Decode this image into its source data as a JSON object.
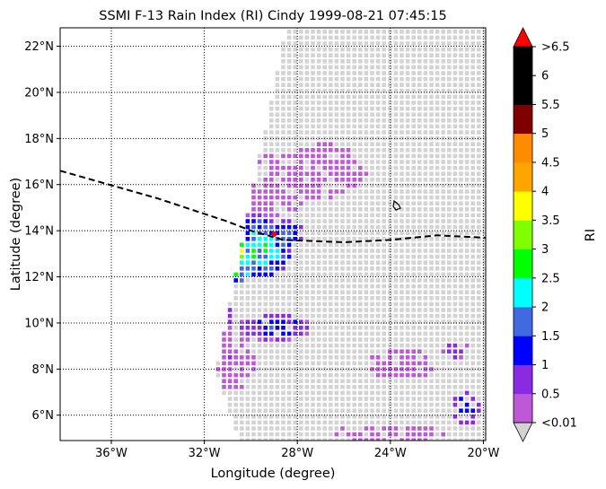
{
  "chart_data": {
    "type": "heatmap",
    "title": "SSMI F-13 Rain Index (RI) Cindy 1999-08-21 07:45:15",
    "xlabel": "Longitude (degree)",
    "ylabel": "Latitude (degree)",
    "xlim": [
      -38.2,
      -19.9
    ],
    "ylim": [
      4.9,
      22.8
    ],
    "x_ticks": [
      "36°W",
      "32°W",
      "28°W",
      "24°W",
      "20°W"
    ],
    "x_tick_values": [
      -36,
      -32,
      -28,
      -24,
      -20
    ],
    "y_ticks": [
      "6°N",
      "8°N",
      "10°N",
      "12°N",
      "14°N",
      "16°N",
      "18°N",
      "20°N",
      "22°N"
    ],
    "y_tick_values": [
      6,
      8,
      10,
      12,
      14,
      16,
      18,
      20,
      22
    ],
    "grid": "dotted",
    "colorbar": {
      "label": "RI",
      "tick_labels": [
        "<0.01",
        "0.5",
        "1",
        "1.5",
        "2",
        "2.5",
        "3",
        "3.5",
        "4",
        "4.5",
        "5",
        "5.5",
        "6",
        ">6.5"
      ],
      "colors": [
        "#be58d6",
        "#8a2be2",
        "#0000ff",
        "#4169e1",
        "#00ffff",
        "#00ff00",
        "#7fff00",
        "#ffff00",
        "#ffa500",
        "#ff8c00",
        "#800000",
        "#000000",
        "#000000"
      ],
      "under_color": "#d3d3d3",
      "over_color": "#ff0000"
    },
    "swath": {
      "color": "#d3d3d3",
      "corners_lonlat": [
        [
          -31.5,
          8.0
        ],
        [
          -28.5,
          22.8
        ],
        [
          -19.9,
          22.8
        ],
        [
          -19.9,
          4.9
        ],
        [
          -30.5,
          4.9
        ]
      ]
    },
    "storm_track": {
      "style": "dashed",
      "lon": [
        -38.2,
        -34,
        -31,
        -30,
        -28.6,
        -26,
        -24,
        -22,
        -19.9
      ],
      "lat": [
        16.6,
        15.4,
        14.4,
        14.0,
        13.6,
        13.5,
        13.6,
        13.8,
        13.7
      ]
    },
    "storm_center": {
      "lon": -29.0,
      "lat": 13.85,
      "color": "#ff0000"
    },
    "rain_clusters": [
      {
        "lon": -30.6,
        "lat": 12.8,
        "rx": 0.9,
        "ry": 1.1,
        "ri": 3.2
      },
      {
        "lon": -29.7,
        "lat": 13.3,
        "rx": 1.6,
        "ry": 1.4,
        "ri": 2.2
      },
      {
        "lon": -28.7,
        "lat": 13.9,
        "rx": 1.0,
        "ry": 0.6,
        "ri": 1.6
      },
      {
        "lon": -31.7,
        "lat": 10.4,
        "rx": 0.9,
        "ry": 0.9,
        "ri": 1.8
      },
      {
        "lon": -29.0,
        "lat": 9.8,
        "rx": 1.6,
        "ry": 0.6,
        "ri": 1.2
      },
      {
        "lon": -20.8,
        "lat": 6.3,
        "rx": 0.7,
        "ry": 0.8,
        "ri": 1.2
      },
      {
        "lon": -21.2,
        "lat": 8.8,
        "rx": 0.6,
        "ry": 0.4,
        "ri": 0.8
      },
      {
        "lon": -29.8,
        "lat": 16.0,
        "rx": 2.5,
        "ry": 1.5,
        "ri": 0.4
      },
      {
        "lon": -27.0,
        "lat": 16.6,
        "rx": 2.0,
        "ry": 1.2,
        "ri": 0.3
      },
      {
        "lon": -31.0,
        "lat": 8.5,
        "rx": 1.2,
        "ry": 1.5,
        "ri": 0.4
      },
      {
        "lon": -23.5,
        "lat": 8.2,
        "rx": 1.5,
        "ry": 0.7,
        "ri": 0.3
      },
      {
        "lon": -24.0,
        "lat": 5.2,
        "rx": 2.5,
        "ry": 0.4,
        "ri": 0.4
      }
    ]
  }
}
